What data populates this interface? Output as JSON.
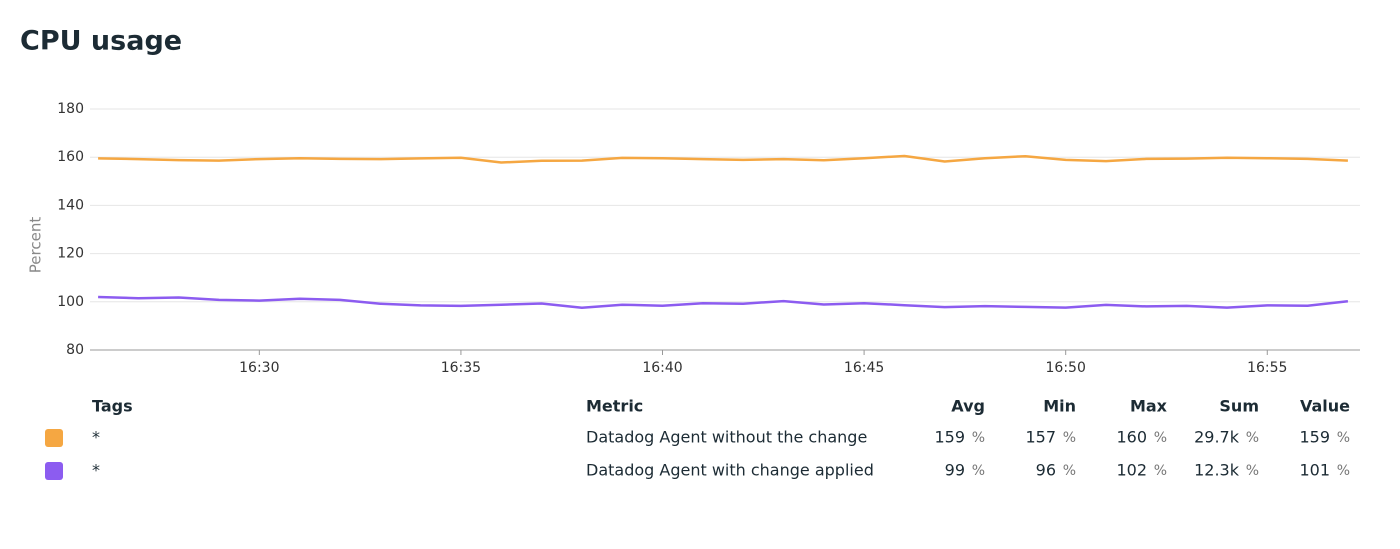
{
  "chart_data": {
    "type": "line",
    "title": "CPU usage",
    "y_label": "Percent",
    "x": [
      986,
      987,
      988,
      989,
      990,
      991,
      992,
      993,
      994,
      995,
      996,
      997,
      998,
      999,
      1000,
      1001,
      1002,
      1003,
      1004,
      1005,
      1006,
      1007,
      1008,
      1009,
      1010,
      1011,
      1012,
      1013,
      1014,
      1015,
      1016,
      1017
    ],
    "xlim": [
      985.8,
      1017.3
    ],
    "xticks": [
      {
        "value": 990,
        "label": "16:30"
      },
      {
        "value": 995,
        "label": "16:35"
      },
      {
        "value": 1000,
        "label": "16:40"
      },
      {
        "value": 1005,
        "label": "16:45"
      },
      {
        "value": 1010,
        "label": "16:50"
      },
      {
        "value": 1015,
        "label": "16:55"
      }
    ],
    "ylim": [
      80,
      180
    ],
    "yticks": [
      80,
      100,
      120,
      140,
      160,
      180
    ],
    "grid": true,
    "series": [
      {
        "name": "Datadog Agent without the change",
        "color": "#f5a742",
        "values": [
          159.5,
          159.2,
          158.8,
          158.6,
          159.2,
          159.6,
          159.3,
          159.2,
          159.5,
          159.8,
          157.8,
          158.5,
          158.6,
          159.7,
          159.6,
          159.2,
          158.9,
          159.2,
          158.7,
          159.6,
          160.5,
          158.2,
          159.6,
          160.4,
          158.9,
          158.4,
          159.3,
          159.4,
          159.8,
          159.6,
          159.3,
          158.6
        ]
      },
      {
        "name": "Datadog Agent with change applied",
        "color": "#8c5cf0",
        "values": [
          102,
          101.5,
          101.8,
          100.8,
          100.5,
          101.3,
          100.8,
          99.2,
          98.5,
          98.3,
          98.8,
          99.3,
          97.5,
          98.8,
          98.4,
          99.4,
          99.2,
          100.3,
          98.9,
          99.4,
          98.6,
          97.8,
          98.2,
          97.9,
          97.6,
          98.7,
          98.1,
          98.3,
          97.6,
          98.5,
          98.4,
          100.2
        ]
      }
    ]
  },
  "legend_table": {
    "headers": [
      "Tags",
      "Metric",
      "Avg",
      "Min",
      "Max",
      "Sum",
      "Value"
    ],
    "unit": "%",
    "rows": [
      {
        "tag": "*",
        "stats": [
          159,
          157,
          160,
          "29.7k",
          159
        ]
      },
      {
        "tag": "*",
        "stats": [
          99,
          96,
          102,
          "12.3k",
          101
        ]
      }
    ]
  }
}
